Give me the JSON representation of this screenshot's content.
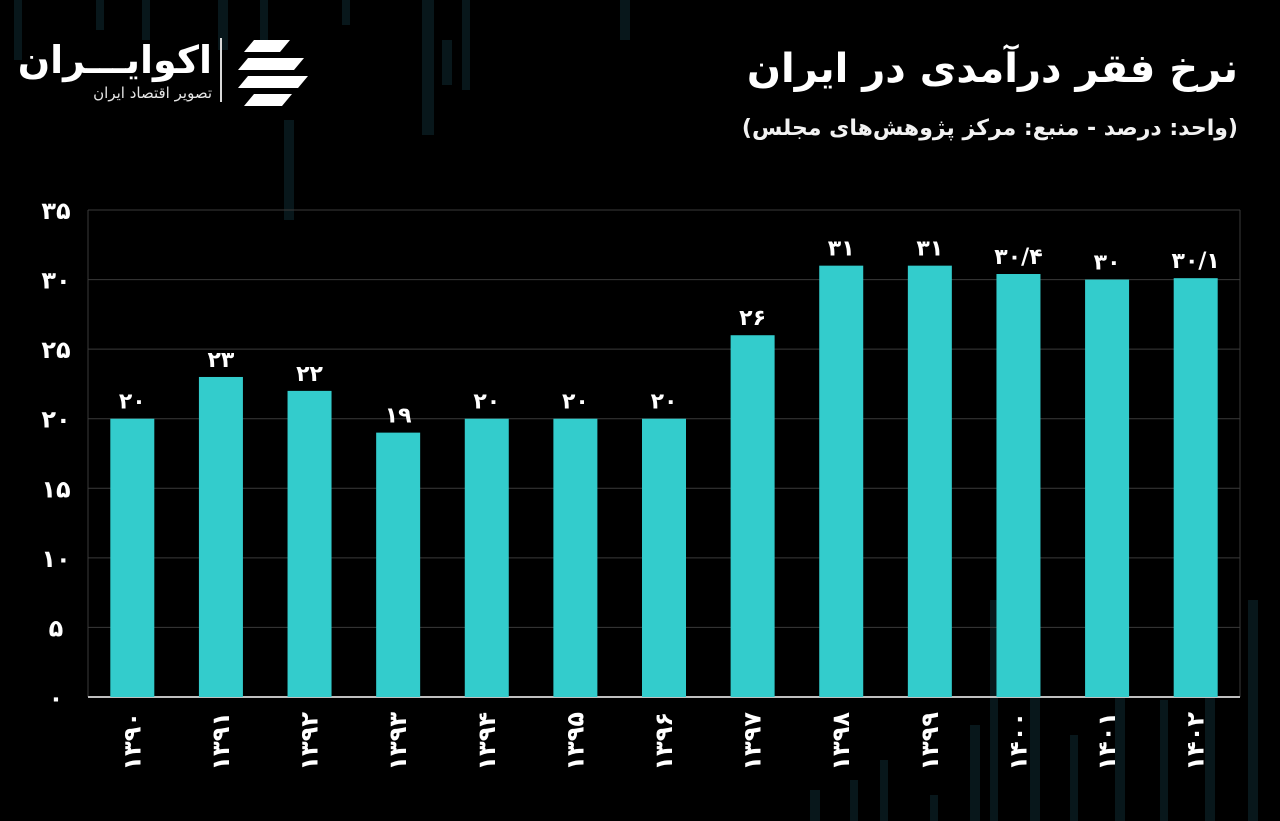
{
  "header": {
    "title": "نرخ فقر درآمدی در ایران",
    "subtitle": "(واحد: درصد - منبع: مرکز پژوهش‌های مجلس)"
  },
  "brand": {
    "name": "اکوایـــران",
    "tagline": "تصویر اقتصاد ایران",
    "logo_icon": "ekoiran-logo-icon"
  },
  "colors": {
    "background": "#000000",
    "bar": "#33cccc",
    "grid": "#3a3a3a",
    "text": "#ffffff"
  },
  "chart_data": {
    "type": "bar",
    "categories": [
      "۱۳۹۰",
      "۱۳۹۱",
      "۱۳۹۲",
      "۱۳۹۳",
      "۱۳۹۴",
      "۱۳۹۵",
      "۱۳۹۶",
      "۱۳۹۷",
      "۱۳۹۸",
      "۱۳۹۹",
      "۱۴۰۰",
      "۱۴۰۱",
      "۱۴۰۲"
    ],
    "values": [
      20,
      23,
      22,
      19,
      20,
      20,
      20,
      26,
      31,
      31,
      30.4,
      30,
      30.1
    ],
    "value_labels": [
      "۲۰",
      "۲۳",
      "۲۲",
      "۱۹",
      "۲۰",
      "۲۰",
      "۲۰",
      "۲۶",
      "۳۱",
      "۳۱",
      "۳۰/۴",
      "۳۰",
      "۳۰/۱"
    ],
    "yticks": [
      0,
      5,
      10,
      15,
      20,
      25,
      30,
      35
    ],
    "ytick_labels": [
      "۰",
      "۵",
      "۱۰",
      "۱۵",
      "۲۰",
      "۲۵",
      "۳۰",
      "۳۵"
    ],
    "ylim": [
      0,
      35
    ],
    "grid": true,
    "legend": "none"
  }
}
